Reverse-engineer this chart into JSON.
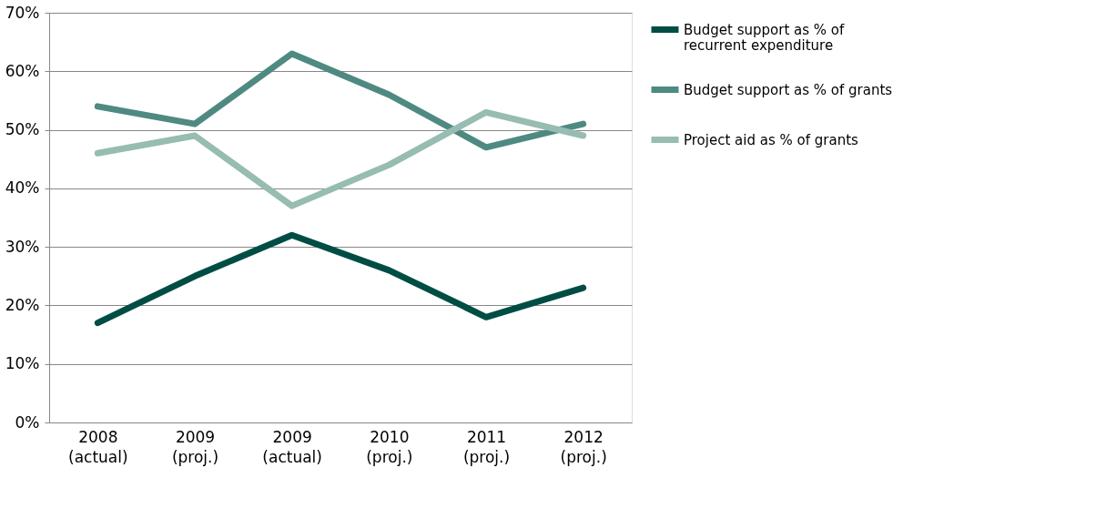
{
  "chart_data": {
    "type": "line",
    "categories": [
      "2008 (actual)",
      "2009 (proj.)",
      "2009 (actual)",
      "2010 (proj.)",
      "2011 (proj.)",
      "2012 (proj.)"
    ],
    "series": [
      {
        "name": "Budget support as % of recurrent expenditure",
        "color": "#004d44",
        "values": [
          17,
          25,
          32,
          26,
          18,
          23
        ]
      },
      {
        "name": "Budget support as % of grants",
        "color": "#4e8a82",
        "values": [
          54,
          51,
          63,
          56,
          47,
          51
        ]
      },
      {
        "name": "Project aid as % of grants",
        "color": "#97bcb2",
        "values": [
          46,
          49,
          37,
          44,
          53,
          49
        ]
      }
    ],
    "ylim": [
      0,
      70
    ],
    "yticks": [
      {
        "value": 0,
        "label": "0%"
      },
      {
        "value": 10,
        "label": "10%"
      },
      {
        "value": 20,
        "label": "20%"
      },
      {
        "value": 30,
        "label": "30%"
      },
      {
        "value": 40,
        "label": "40%"
      },
      {
        "value": 50,
        "label": "50%"
      },
      {
        "value": 60,
        "label": "60%"
      },
      {
        "value": 70,
        "label": "70%"
      }
    ],
    "grid": "y",
    "legend": "right",
    "marker": "none",
    "line_style": "solid"
  }
}
